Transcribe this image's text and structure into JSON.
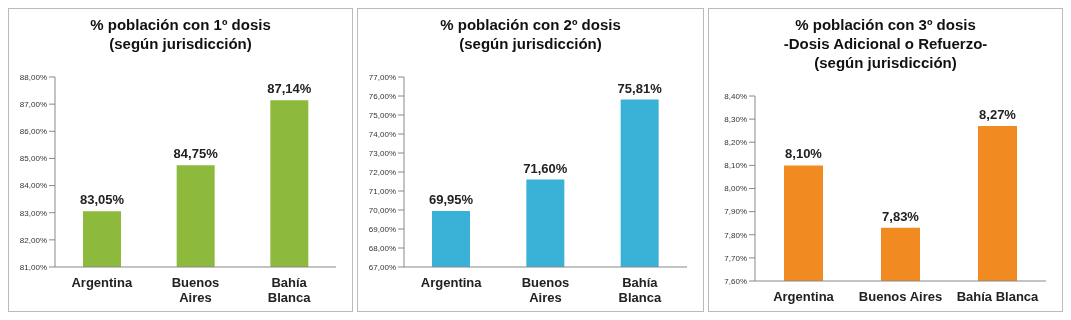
{
  "chart_data": [
    {
      "type": "bar",
      "title": "% población con 1º dosis\n(según jurisdicción)",
      "categories": [
        "Argentina",
        "Buenos Aires",
        "Bahía Blanca"
      ],
      "values": [
        83.05,
        84.75,
        87.14
      ],
      "color": "#8dba3c",
      "value_labels": [
        "83,05%",
        "84,75%",
        "87,14%"
      ],
      "ylim": [
        81,
        88
      ],
      "yticks": [
        {
          "value": 81,
          "label": "81,00%"
        },
        {
          "value": 82,
          "label": "82,00%"
        },
        {
          "value": 83,
          "label": "83,00%"
        },
        {
          "value": 84,
          "label": "84,00%"
        },
        {
          "value": 85,
          "label": "85,00%"
        },
        {
          "value": 86,
          "label": "86,00%"
        },
        {
          "value": 87,
          "label": "87,00%"
        },
        {
          "value": 88,
          "label": "88,00%"
        }
      ]
    },
    {
      "type": "bar",
      "title": "% población con 2º dosis\n(según jurisdicción)",
      "categories": [
        "Argentina",
        "Buenos Aires",
        "Bahía Blanca"
      ],
      "values": [
        69.95,
        71.6,
        75.81
      ],
      "color": "#3ab2d8",
      "value_labels": [
        "69,95%",
        "71,60%",
        "75,81%"
      ],
      "ylim": [
        67,
        77
      ],
      "yticks": [
        {
          "value": 67,
          "label": "67,00%"
        },
        {
          "value": 68,
          "label": "68,00%"
        },
        {
          "value": 69,
          "label": "69,00%"
        },
        {
          "value": 70,
          "label": "70,00%"
        },
        {
          "value": 71,
          "label": "71,00%"
        },
        {
          "value": 72,
          "label": "72,00%"
        },
        {
          "value": 73,
          "label": "73,00%"
        },
        {
          "value": 74,
          "label": "74,00%"
        },
        {
          "value": 75,
          "label": "75,00%"
        },
        {
          "value": 76,
          "label": "76,00%"
        },
        {
          "value": 77,
          "label": "77,00%"
        }
      ]
    },
    {
      "type": "bar",
      "title": "% población con 3º dosis\n-Dosis Adicional o Refuerzo-\n(según jurisdicción)",
      "categories": [
        "Argentina",
        "Buenos Aires",
        "Bahía Blanca"
      ],
      "values": [
        8.1,
        7.83,
        8.27
      ],
      "color": "#f28a22",
      "value_labels": [
        "8,10%",
        "7,83%",
        "8,27%"
      ],
      "ylim": [
        7.6,
        8.4
      ],
      "yticks": [
        {
          "value": 7.6,
          "label": "7,60%"
        },
        {
          "value": 7.7,
          "label": "7,70%"
        },
        {
          "value": 7.8,
          "label": "7,80%"
        },
        {
          "value": 7.9,
          "label": "7,90%"
        },
        {
          "value": 8.0,
          "label": "8,00%"
        },
        {
          "value": 8.1,
          "label": "8,10%"
        },
        {
          "value": 8.2,
          "label": "8,20%"
        },
        {
          "value": 8.3,
          "label": "8,30%"
        },
        {
          "value": 8.4,
          "label": "8,40%"
        }
      ]
    }
  ]
}
